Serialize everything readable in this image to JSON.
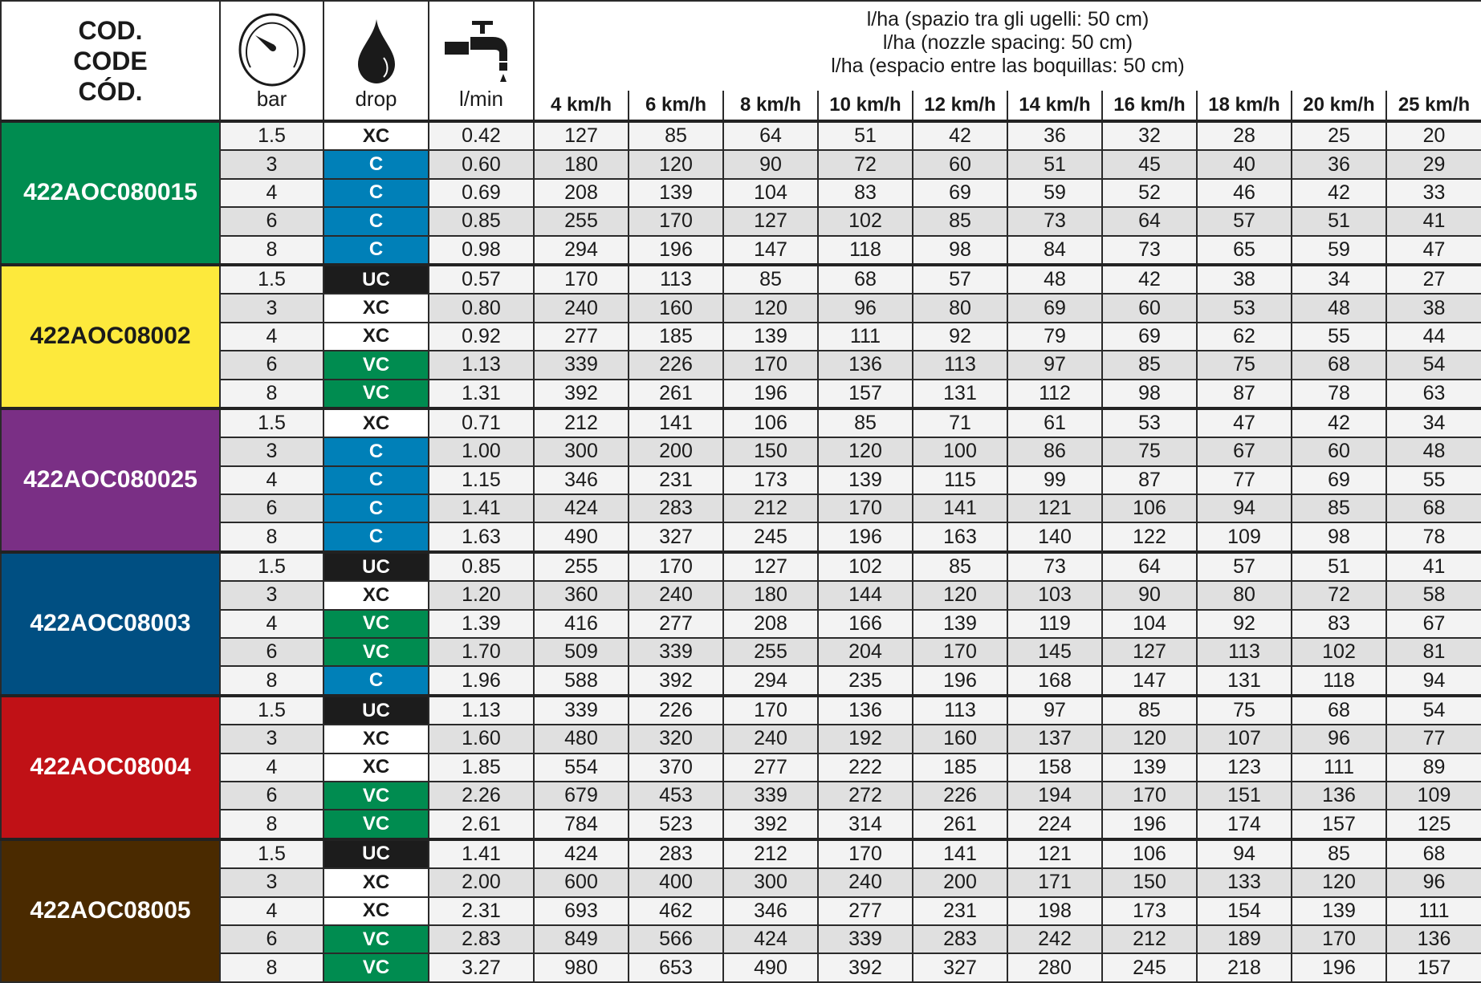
{
  "header": {
    "code_label": [
      "COD.",
      "CODE",
      "CÓD."
    ],
    "bar_label": "bar",
    "bar_icon": "pressure-gauge-icon",
    "drop_label": "drop",
    "drop_icon": "water-drop-icon",
    "lmin_label": "l/min",
    "lmin_icon": "water-tap-icon",
    "lha_lines": [
      "l/ha (spazio tra gli ugelli: 50 cm)",
      "l/ha (nozzle spacing: 50 cm)",
      "l/ha (espacio entre las boquillas: 50 cm)"
    ],
    "speeds": [
      "4 km/h",
      "6 km/h",
      "8 km/h",
      "10 km/h",
      "12 km/h",
      "14 km/h",
      "16 km/h",
      "18 km/h",
      "20 km/h",
      "25 km/h"
    ]
  },
  "drop_colors": {
    "XC": {
      "bg": "#ffffff",
      "fg": "#1a1a1a"
    },
    "C": {
      "bg": "#0080b8",
      "fg": "#ffffff"
    },
    "UC": {
      "bg": "#1c1c1c",
      "fg": "#ffffff"
    },
    "VC": {
      "bg": "#008c50",
      "fg": "#ffffff"
    }
  },
  "groups": [
    {
      "code": "422AOC080015",
      "color": "#008c50",
      "text_color": "#ffffff",
      "rows": [
        [
          "1.5",
          "XC",
          "0.42",
          "127",
          "85",
          "64",
          "51",
          "42",
          "36",
          "32",
          "28",
          "25",
          "20"
        ],
        [
          "3",
          "C",
          "0.60",
          "180",
          "120",
          "90",
          "72",
          "60",
          "51",
          "45",
          "40",
          "36",
          "29"
        ],
        [
          "4",
          "C",
          "0.69",
          "208",
          "139",
          "104",
          "83",
          "69",
          "59",
          "52",
          "46",
          "42",
          "33"
        ],
        [
          "6",
          "C",
          "0.85",
          "255",
          "170",
          "127",
          "102",
          "85",
          "73",
          "64",
          "57",
          "51",
          "41"
        ],
        [
          "8",
          "C",
          "0.98",
          "294",
          "196",
          "147",
          "118",
          "98",
          "84",
          "73",
          "65",
          "59",
          "47"
        ]
      ]
    },
    {
      "code": "422AOC08002",
      "color": "#fde93c",
      "text_color": "#1a1a1a",
      "rows": [
        [
          "1.5",
          "UC",
          "0.57",
          "170",
          "113",
          "85",
          "68",
          "57",
          "48",
          "42",
          "38",
          "34",
          "27"
        ],
        [
          "3",
          "XC",
          "0.80",
          "240",
          "160",
          "120",
          "96",
          "80",
          "69",
          "60",
          "53",
          "48",
          "38"
        ],
        [
          "4",
          "XC",
          "0.92",
          "277",
          "185",
          "139",
          "111",
          "92",
          "79",
          "69",
          "62",
          "55",
          "44"
        ],
        [
          "6",
          "VC",
          "1.13",
          "339",
          "226",
          "170",
          "136",
          "113",
          "97",
          "85",
          "75",
          "68",
          "54"
        ],
        [
          "8",
          "VC",
          "1.31",
          "392",
          "261",
          "196",
          "157",
          "131",
          "112",
          "98",
          "87",
          "78",
          "63"
        ]
      ]
    },
    {
      "code": "422AOC080025",
      "color": "#7a2f85",
      "text_color": "#ffffff",
      "rows": [
        [
          "1.5",
          "XC",
          "0.71",
          "212",
          "141",
          "106",
          "85",
          "71",
          "61",
          "53",
          "47",
          "42",
          "34"
        ],
        [
          "3",
          "C",
          "1.00",
          "300",
          "200",
          "150",
          "120",
          "100",
          "86",
          "75",
          "67",
          "60",
          "48"
        ],
        [
          "4",
          "C",
          "1.15",
          "346",
          "231",
          "173",
          "139",
          "115",
          "99",
          "87",
          "77",
          "69",
          "55"
        ],
        [
          "6",
          "C",
          "1.41",
          "424",
          "283",
          "212",
          "170",
          "141",
          "121",
          "106",
          "94",
          "85",
          "68"
        ],
        [
          "8",
          "C",
          "1.63",
          "490",
          "327",
          "245",
          "196",
          "163",
          "140",
          "122",
          "109",
          "98",
          "78"
        ]
      ]
    },
    {
      "code": "422AOC08003",
      "color": "#004f82",
      "text_color": "#ffffff",
      "rows": [
        [
          "1.5",
          "UC",
          "0.85",
          "255",
          "170",
          "127",
          "102",
          "85",
          "73",
          "64",
          "57",
          "51",
          "41"
        ],
        [
          "3",
          "XC",
          "1.20",
          "360",
          "240",
          "180",
          "144",
          "120",
          "103",
          "90",
          "80",
          "72",
          "58"
        ],
        [
          "4",
          "VC",
          "1.39",
          "416",
          "277",
          "208",
          "166",
          "139",
          "119",
          "104",
          "92",
          "83",
          "67"
        ],
        [
          "6",
          "VC",
          "1.70",
          "509",
          "339",
          "255",
          "204",
          "170",
          "145",
          "127",
          "113",
          "102",
          "81"
        ],
        [
          "8",
          "C",
          "1.96",
          "588",
          "392",
          "294",
          "235",
          "196",
          "168",
          "147",
          "131",
          "118",
          "94"
        ]
      ]
    },
    {
      "code": "422AOC08004",
      "color": "#c01116",
      "text_color": "#ffffff",
      "rows": [
        [
          "1.5",
          "UC",
          "1.13",
          "339",
          "226",
          "170",
          "136",
          "113",
          "97",
          "85",
          "75",
          "68",
          "54"
        ],
        [
          "3",
          "XC",
          "1.60",
          "480",
          "320",
          "240",
          "192",
          "160",
          "137",
          "120",
          "107",
          "96",
          "77"
        ],
        [
          "4",
          "XC",
          "1.85",
          "554",
          "370",
          "277",
          "222",
          "185",
          "158",
          "139",
          "123",
          "111",
          "89"
        ],
        [
          "6",
          "VC",
          "2.26",
          "679",
          "453",
          "339",
          "272",
          "226",
          "194",
          "170",
          "151",
          "136",
          "109"
        ],
        [
          "8",
          "VC",
          "2.61",
          "784",
          "523",
          "392",
          "314",
          "261",
          "224",
          "196",
          "174",
          "157",
          "125"
        ]
      ]
    },
    {
      "code": "422AOC08005",
      "color": "#4a2a00",
      "text_color": "#ffffff",
      "rows": [
        [
          "1.5",
          "UC",
          "1.41",
          "424",
          "283",
          "212",
          "170",
          "141",
          "121",
          "106",
          "94",
          "85",
          "68"
        ],
        [
          "3",
          "XC",
          "2.00",
          "600",
          "400",
          "300",
          "240",
          "200",
          "171",
          "150",
          "133",
          "120",
          "96"
        ],
        [
          "4",
          "XC",
          "2.31",
          "693",
          "462",
          "346",
          "277",
          "231",
          "198",
          "173",
          "154",
          "139",
          "111"
        ],
        [
          "6",
          "VC",
          "2.83",
          "849",
          "566",
          "424",
          "339",
          "283",
          "242",
          "212",
          "189",
          "170",
          "136"
        ],
        [
          "8",
          "VC",
          "3.27",
          "980",
          "653",
          "490",
          "392",
          "327",
          "280",
          "245",
          "218",
          "196",
          "157"
        ]
      ]
    }
  ]
}
